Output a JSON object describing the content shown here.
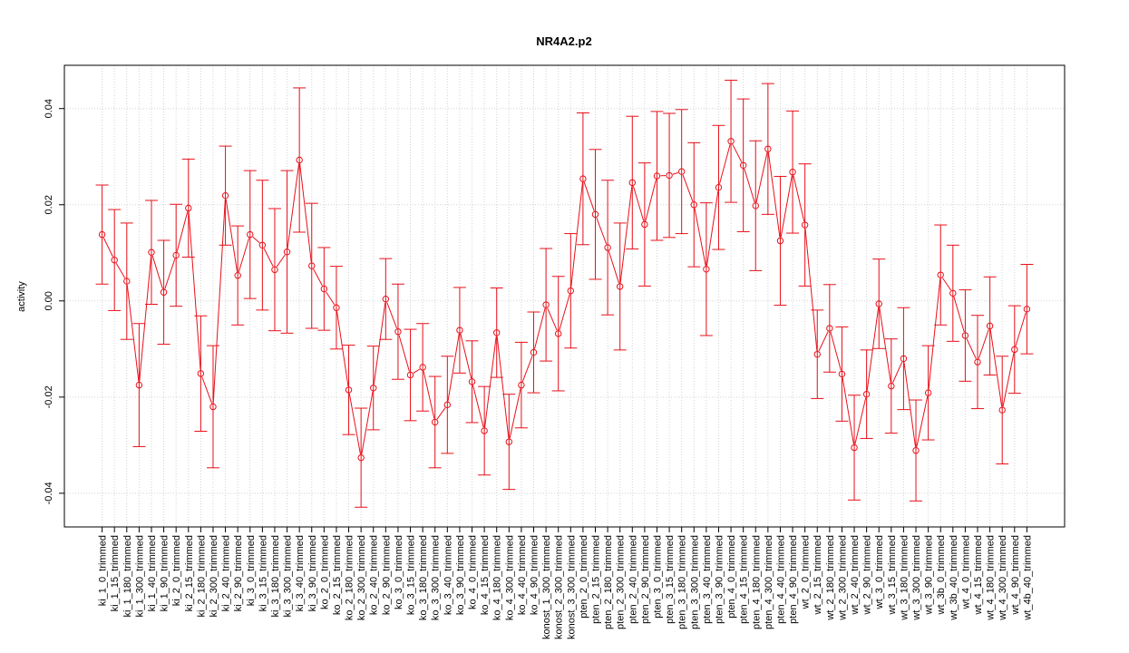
{
  "chart_data": {
    "type": "line",
    "title": "NR4A2.p2",
    "xlabel": "",
    "ylabel": "activity",
    "ylim": [
      -0.047,
      0.049
    ],
    "yticks": [
      -0.04,
      -0.02,
      0.0,
      0.02,
      0.04
    ],
    "ytick_labels": [
      "-0.04",
      "-0.02",
      "0.00",
      "0.02",
      "0.04"
    ],
    "grid": true,
    "error_bars": true,
    "colors": {
      "series": "#e8101a",
      "grid": "#d3d3d3",
      "axis": "#000000"
    },
    "categories": [
      "ki_1_0_trimmed",
      "ki_1_15_trimmed",
      "ki_1_180_trimmed",
      "ki_1_300_trimmed",
      "ki_1_40_trimmed",
      "ki_1_90_trimmed",
      "ki_2_0_trimmed",
      "ki_2_15_trimmed",
      "ki_2_180_trimmed",
      "ki_2_300_trimmed",
      "ki_2_40_trimmed",
      "ki_2_90_trimmed",
      "ki_3_0_trimmed",
      "ki_3_15_trimmed",
      "ki_3_180_trimmed",
      "ki_3_300_trimmed",
      "ki_3_40_trimmed",
      "ki_3_90_trimmed",
      "ko_2_0_trimmed",
      "ko_2_15_trimmed",
      "ko_2_180_trimmed",
      "ko_2_300_trimmed",
      "ko_2_40_trimmed",
      "ko_2_90_trimmed",
      "ko_3_0_trimmed",
      "ko_3_15_trimmed",
      "ko_3_180_trimmed",
      "ko_3_300_trimmed",
      "ko_3_40_trimmed",
      "ko_3_90_trimmed",
      "ko_4_0_trimmed",
      "ko_4_15_trimmed",
      "ko_4_180_trimmed",
      "ko_4_300_trimmed",
      "ko_4_40_trimmed",
      "ko_4_90_trimmed",
      "konost_1_300_trimmed",
      "konost_2_300_trimmed",
      "konost_3_300_trimmed",
      "pten_2_0_trimmed",
      "pten_2_15_trimmed",
      "pten_2_180_trimmed",
      "pten_2_300_trimmed",
      "pten_2_40_trimmed",
      "pten_2_90_trimmed",
      "pten_3_0_trimmed",
      "pten_3_15_trimmed",
      "pten_3_180_trimmed",
      "pten_3_300_trimmed",
      "pten_3_40_trimmed",
      "pten_3_90_trimmed",
      "pten_4_0_trimmed",
      "pten_4_15_trimmed",
      "pten_4_180_trimmed",
      "pten_4_300_trimmed",
      "pten_4_40_trimmed",
      "pten_4_90_trimmed",
      "wt_2_0_trimmed",
      "wt_2_15_trimmed",
      "wt_2_180_trimmed",
      "wt_2_300_trimmed",
      "wt_2_40_trimmed",
      "wt_2_90_trimmed",
      "wt_3_0_trimmed",
      "wt_3_15_trimmed",
      "wt_3_180_trimmed",
      "wt_3_300_trimmed",
      "wt_3_90_trimmed",
      "wt_3b_0_trimmed",
      "wt_3b_40_trimmed",
      "wt_4_0_trimmed",
      "wt_4_15_trimmed",
      "wt_4_180_trimmed",
      "wt_4_300_trimmed",
      "wt_4_90_trimmed",
      "wt_4b_40_trimmed"
    ],
    "values": [
      0.0138,
      0.0085,
      0.0041,
      -0.0175,
      0.0101,
      0.0018,
      0.0095,
      0.0193,
      -0.0151,
      -0.022,
      0.0219,
      0.0053,
      0.0138,
      0.0116,
      0.0065,
      0.0102,
      0.0293,
      0.0073,
      0.0025,
      -0.0014,
      -0.0185,
      -0.0326,
      -0.0181,
      0.0004,
      -0.0064,
      -0.0154,
      -0.0138,
      -0.0252,
      -0.0216,
      -0.0061,
      -0.0168,
      -0.027,
      -0.0066,
      -0.0293,
      -0.0175,
      -0.0107,
      -0.0008,
      -0.0068,
      0.0021,
      0.0254,
      0.018,
      0.0111,
      0.003,
      0.0246,
      0.0159,
      0.026,
      0.0261,
      0.0269,
      0.02,
      0.0066,
      0.0236,
      0.0332,
      0.0282,
      0.0198,
      0.0316,
      0.0125,
      0.0268,
      0.0158,
      -0.0111,
      -0.0057,
      -0.0152,
      -0.0305,
      -0.0194,
      -0.0006,
      -0.0177,
      -0.012,
      -0.0311,
      -0.0191,
      0.0054,
      0.0016,
      -0.0072,
      -0.0127,
      -0.0052,
      -0.0227,
      -0.0101,
      -0.0017
    ],
    "errors": [
      0.0103,
      0.0105,
      0.0121,
      0.0128,
      0.0108,
      0.0108,
      0.0106,
      0.0102,
      0.012,
      0.0127,
      0.0103,
      0.0103,
      0.0133,
      0.0135,
      0.0127,
      0.0169,
      0.015,
      0.013,
      0.0086,
      0.0086,
      0.0093,
      0.0103,
      0.0087,
      0.0084,
      0.0099,
      0.0095,
      0.0091,
      0.0095,
      0.0101,
      0.0089,
      0.0085,
      0.0092,
      0.0093,
      0.0099,
      0.0089,
      0.0084,
      0.0117,
      0.0119,
      0.0119,
      0.0137,
      0.0135,
      0.014,
      0.0132,
      0.0138,
      0.0128,
      0.0134,
      0.0129,
      0.0129,
      0.0129,
      0.0138,
      0.0129,
      0.0127,
      0.0138,
      0.0135,
      0.0136,
      0.0134,
      0.0127,
      0.0127,
      0.0092,
      0.0091,
      0.0098,
      0.0109,
      0.0092,
      0.0093,
      0.0098,
      0.0106,
      0.0105,
      0.0098,
      0.0104,
      0.01,
      0.0095,
      0.0097,
      0.0102,
      0.0112,
      0.0091,
      0.0093
    ]
  }
}
